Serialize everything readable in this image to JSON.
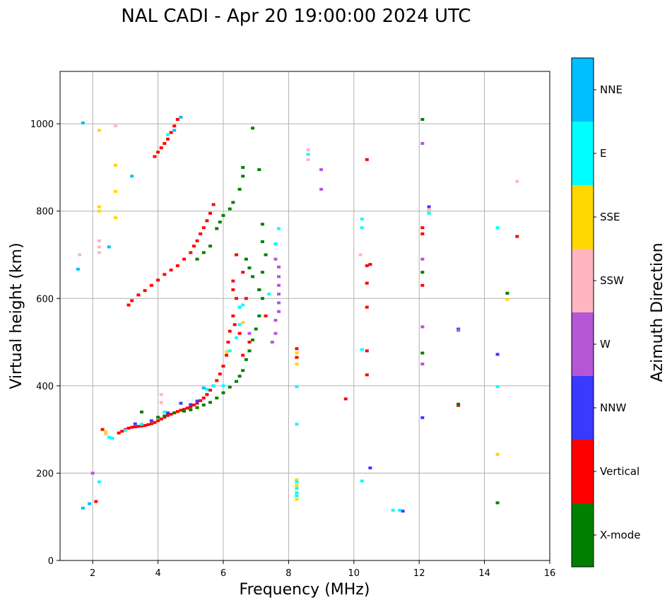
{
  "chart_data": {
    "type": "scatter",
    "title": "NAL CADI - Apr 20 19:00:00 2024 UTC",
    "xlabel": "Frequency (MHz)",
    "ylabel": "Virtual height (km)",
    "xlim": [
      1,
      16
    ],
    "ylim": [
      0,
      1120
    ],
    "xticks": [
      "2",
      "4",
      "6",
      "8",
      "10",
      "12",
      "14",
      "16"
    ],
    "yticks": [
      "0",
      "200",
      "400",
      "600",
      "800",
      "1000"
    ],
    "grid": true,
    "colorbar": {
      "title": "Azimuth Direction",
      "entries": [
        {
          "label": "X-mode",
          "color": "#008000"
        },
        {
          "label": "Vertical",
          "color": "#ff0000"
        },
        {
          "label": "NNW",
          "color": "#3a3aff"
        },
        {
          "label": "W",
          "color": "#b556d6"
        },
        {
          "label": "SSW",
          "color": "#ffb6c1"
        },
        {
          "label": "SSE",
          "color": "#ffd700"
        },
        {
          "label": "E",
          "color": "#00ffff"
        },
        {
          "label": "NNE",
          "color": "#00bfff"
        }
      ]
    },
    "series": [
      {
        "name": "Vertical",
        "color": "#ff0000",
        "points": [
          [
            2.8,
            292
          ],
          [
            2.9,
            296
          ],
          [
            3.0,
            300
          ],
          [
            3.1,
            303
          ],
          [
            3.2,
            305
          ],
          [
            3.3,
            306
          ],
          [
            3.4,
            307
          ],
          [
            3.5,
            308
          ],
          [
            3.6,
            309
          ],
          [
            3.7,
            311
          ],
          [
            3.8,
            313
          ],
          [
            3.9,
            316
          ],
          [
            4.0,
            320
          ],
          [
            4.1,
            324
          ],
          [
            4.2,
            328
          ],
          [
            4.3,
            332
          ],
          [
            4.4,
            335
          ],
          [
            4.5,
            338
          ],
          [
            4.6,
            341
          ],
          [
            4.7,
            344
          ],
          [
            4.8,
            346
          ],
          [
            4.9,
            349
          ],
          [
            5.0,
            352
          ],
          [
            5.1,
            356
          ],
          [
            5.2,
            360
          ],
          [
            5.3,
            366
          ],
          [
            5.4,
            372
          ],
          [
            5.5,
            380
          ],
          [
            5.6,
            390
          ],
          [
            5.7,
            400
          ],
          [
            5.8,
            412
          ],
          [
            5.9,
            427
          ],
          [
            6.0,
            445
          ],
          [
            6.1,
            470
          ],
          [
            6.15,
            500
          ],
          [
            6.2,
            525
          ],
          [
            6.3,
            560
          ],
          [
            6.4,
            600
          ],
          [
            3.1,
            585
          ],
          [
            3.2,
            595
          ],
          [
            3.4,
            608
          ],
          [
            3.6,
            618
          ],
          [
            3.8,
            630
          ],
          [
            4.0,
            642
          ],
          [
            4.2,
            655
          ],
          [
            4.4,
            665
          ],
          [
            4.6,
            675
          ],
          [
            4.8,
            690
          ],
          [
            5.0,
            705
          ],
          [
            5.1,
            720
          ],
          [
            5.2,
            732
          ],
          [
            5.3,
            748
          ],
          [
            5.4,
            762
          ],
          [
            5.5,
            778
          ],
          [
            5.6,
            795
          ],
          [
            5.7,
            815
          ],
          [
            3.9,
            925
          ],
          [
            4.0,
            935
          ],
          [
            4.1,
            945
          ],
          [
            4.2,
            955
          ],
          [
            4.3,
            965
          ],
          [
            4.4,
            980
          ],
          [
            4.5,
            995
          ],
          [
            4.6,
            1010
          ],
          [
            6.3,
            640
          ],
          [
            6.3,
            620
          ],
          [
            6.35,
            540
          ],
          [
            6.4,
            700
          ],
          [
            6.5,
            580
          ],
          [
            6.5,
            520
          ],
          [
            6.6,
            660
          ],
          [
            6.6,
            470
          ],
          [
            6.7,
            600
          ],
          [
            6.8,
            500
          ],
          [
            7.1,
            620
          ],
          [
            7.3,
            560
          ],
          [
            8.25,
            465
          ],
          [
            8.25,
            485
          ],
          [
            9.75,
            370
          ],
          [
            10.4,
            425
          ],
          [
            10.4,
            480
          ],
          [
            10.4,
            580
          ],
          [
            10.4,
            635
          ],
          [
            10.4,
            675
          ],
          [
            10.5,
            678
          ],
          [
            10.4,
            918
          ],
          [
            12.1,
            630
          ],
          [
            12.1,
            762
          ],
          [
            12.1,
            748
          ],
          [
            13.2,
            355
          ],
          [
            15.0,
            742
          ],
          [
            2.3,
            300
          ],
          [
            2.1,
            135
          ]
        ]
      },
      {
        "name": "X-mode",
        "color": "#008000",
        "points": [
          [
            3.5,
            340
          ],
          [
            4.0,
            328
          ],
          [
            4.2,
            331
          ],
          [
            4.5,
            338
          ],
          [
            4.8,
            342
          ],
          [
            5.0,
            345
          ],
          [
            5.2,
            350
          ],
          [
            5.4,
            356
          ],
          [
            5.6,
            362
          ],
          [
            5.8,
            372
          ],
          [
            6.0,
            384
          ],
          [
            6.2,
            397
          ],
          [
            6.4,
            410
          ],
          [
            6.5,
            422
          ],
          [
            6.6,
            435
          ],
          [
            6.7,
            460
          ],
          [
            6.8,
            480
          ],
          [
            6.9,
            505
          ],
          [
            7.0,
            530
          ],
          [
            7.1,
            560
          ],
          [
            7.2,
            600
          ],
          [
            7.1,
            620
          ],
          [
            6.9,
            650
          ],
          [
            6.8,
            670
          ],
          [
            6.7,
            690
          ],
          [
            5.2,
            690
          ],
          [
            5.4,
            705
          ],
          [
            5.6,
            720
          ],
          [
            5.8,
            760
          ],
          [
            5.9,
            775
          ],
          [
            6.0,
            790
          ],
          [
            6.2,
            805
          ],
          [
            6.3,
            820
          ],
          [
            6.5,
            850
          ],
          [
            6.6,
            880
          ],
          [
            6.6,
            900
          ],
          [
            6.9,
            990
          ],
          [
            7.1,
            895
          ],
          [
            7.2,
            770
          ],
          [
            7.2,
            730
          ],
          [
            7.3,
            700
          ],
          [
            7.2,
            660
          ],
          [
            12.1,
            660
          ],
          [
            12.1,
            475
          ],
          [
            12.1,
            1010
          ],
          [
            13.2,
            358
          ],
          [
            14.4,
            132
          ],
          [
            14.7,
            612
          ]
        ]
      },
      {
        "name": "NNW",
        "color": "#3a3aff",
        "points": [
          [
            3.3,
            313
          ],
          [
            3.8,
            320
          ],
          [
            4.3,
            338
          ],
          [
            4.7,
            360
          ],
          [
            5.0,
            357
          ],
          [
            5.2,
            365
          ],
          [
            10.5,
            212
          ],
          [
            12.1,
            327
          ],
          [
            12.3,
            810
          ],
          [
            13.2,
            530
          ],
          [
            14.4,
            472
          ],
          [
            11.5,
            113
          ]
        ]
      },
      {
        "name": "W",
        "color": "#b556d6",
        "points": [
          [
            7.5,
            500
          ],
          [
            7.6,
            520
          ],
          [
            7.6,
            550
          ],
          [
            7.7,
            570
          ],
          [
            7.7,
            590
          ],
          [
            7.7,
            610
          ],
          [
            7.7,
            630
          ],
          [
            7.7,
            650
          ],
          [
            7.7,
            672
          ],
          [
            7.6,
            690
          ],
          [
            9.0,
            895
          ],
          [
            9.0,
            850
          ],
          [
            12.1,
            690
          ],
          [
            12.1,
            535
          ],
          [
            12.1,
            450
          ],
          [
            12.1,
            955
          ],
          [
            13.2,
            527
          ],
          [
            2.0,
            200
          ],
          [
            6.8,
            520
          ]
        ]
      },
      {
        "name": "SSW",
        "color": "#ffb6c1",
        "points": [
          [
            2.2,
            705
          ],
          [
            2.2,
            718
          ],
          [
            2.2,
            732
          ],
          [
            2.4,
            290
          ],
          [
            4.1,
            380
          ],
          [
            4.1,
            362
          ],
          [
            8.6,
            940
          ],
          [
            8.6,
            918
          ],
          [
            10.2,
            700
          ],
          [
            12.3,
            804
          ],
          [
            15.0,
            868
          ],
          [
            2.7,
            995
          ],
          [
            1.6,
            700
          ]
        ]
      },
      {
        "name": "SSE",
        "color": "#ffd700",
        "points": [
          [
            2.2,
            985
          ],
          [
            2.2,
            810
          ],
          [
            2.2,
            800
          ],
          [
            2.7,
            905
          ],
          [
            2.7,
            845
          ],
          [
            2.7,
            785
          ],
          [
            6.1,
            478
          ],
          [
            6.6,
            545
          ],
          [
            8.25,
            450
          ],
          [
            8.25,
            475
          ],
          [
            8.25,
            185
          ],
          [
            8.25,
            172
          ],
          [
            8.25,
            140
          ],
          [
            12.3,
            797
          ],
          [
            14.4,
            243
          ],
          [
            14.7,
            598
          ],
          [
            2.4,
            295
          ]
        ]
      },
      {
        "name": "E",
        "color": "#00ffff",
        "points": [
          [
            2.2,
            180
          ],
          [
            2.5,
            282
          ],
          [
            2.6,
            280
          ],
          [
            3.0,
            298
          ],
          [
            3.5,
            312
          ],
          [
            4.3,
            975
          ],
          [
            5.5,
            392
          ],
          [
            5.7,
            400
          ],
          [
            6.0,
            400
          ],
          [
            6.2,
            480
          ],
          [
            6.4,
            510
          ],
          [
            6.5,
            540
          ],
          [
            6.5,
            580
          ],
          [
            6.6,
            585
          ],
          [
            7.4,
            610
          ],
          [
            7.7,
            760
          ],
          [
            7.6,
            725
          ],
          [
            8.25,
            312
          ],
          [
            8.25,
            398
          ],
          [
            8.25,
            180
          ],
          [
            8.25,
            165
          ],
          [
            8.25,
            155
          ],
          [
            8.25,
            148
          ],
          [
            10.25,
            483
          ],
          [
            10.25,
            782
          ],
          [
            10.25,
            762
          ],
          [
            10.25,
            182
          ],
          [
            11.2,
            115
          ],
          [
            11.4,
            115
          ],
          [
            12.3,
            795
          ],
          [
            14.4,
            762
          ],
          [
            14.4,
            398
          ],
          [
            8.6,
            930
          ],
          [
            4.2,
            340
          ]
        ]
      },
      {
        "name": "NNE",
        "color": "#00bfff",
        "points": [
          [
            1.7,
            1002
          ],
          [
            1.55,
            667
          ],
          [
            2.5,
            718
          ],
          [
            3.2,
            880
          ],
          [
            4.5,
            985
          ],
          [
            4.7,
            1015
          ],
          [
            5.4,
            395
          ],
          [
            1.7,
            120
          ],
          [
            1.9,
            130
          ]
        ]
      }
    ]
  }
}
